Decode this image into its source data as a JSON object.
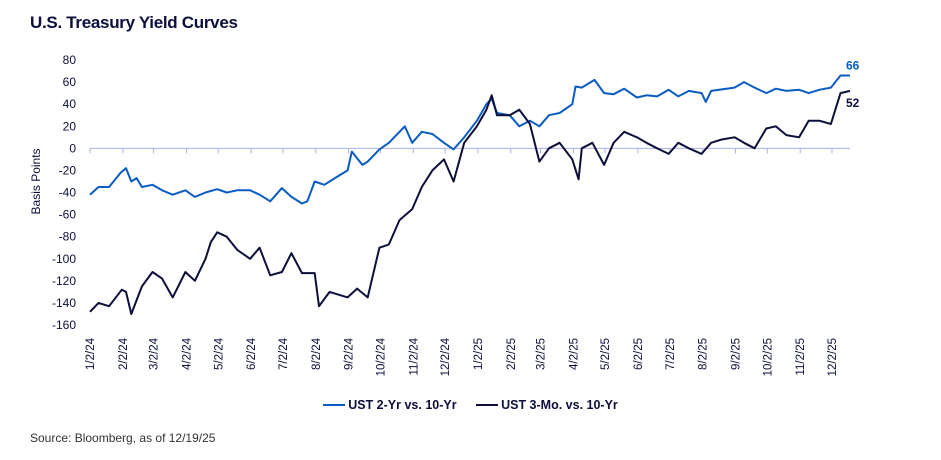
{
  "title": "U.S. Treasury Yield Curves",
  "source": "Source: Bloomberg, as of 12/19/25",
  "chart_data": {
    "type": "line",
    "title": "U.S. Treasury Yield Curves",
    "ylabel": "Basis Points",
    "xlabel": "",
    "ylim": [
      -160,
      80
    ],
    "yticks": [
      80,
      60,
      40,
      20,
      0,
      -20,
      -40,
      -60,
      -80,
      -100,
      -120,
      -140,
      -160
    ],
    "xlim": [
      "2024-01-02",
      "2025-12-19"
    ],
    "xtick_labels": [
      "1/2/24",
      "2/2/24",
      "3/2/24",
      "4/2/24",
      "5/2/24",
      "6/2/24",
      "7/2/24",
      "8/2/24",
      "9/2/24",
      "10/2/24",
      "11/2/24",
      "12/2/24",
      "1/2/25",
      "2/2/25",
      "3/2/25",
      "4/2/25",
      "5/2/25",
      "6/2/25",
      "7/2/25",
      "8/2/25",
      "9/2/25",
      "10/2/25",
      "11/2/25",
      "12/2/25"
    ],
    "xtick_dates": [
      "2024-01-02",
      "2024-02-02",
      "2024-03-02",
      "2024-04-02",
      "2024-05-02",
      "2024-06-02",
      "2024-07-02",
      "2024-08-02",
      "2024-09-02",
      "2024-10-02",
      "2024-11-02",
      "2024-12-02",
      "2025-01-02",
      "2025-02-02",
      "2025-03-02",
      "2025-04-02",
      "2025-05-02",
      "2025-06-02",
      "2025-07-02",
      "2025-08-02",
      "2025-09-02",
      "2025-10-02",
      "2025-11-02",
      "2025-12-02"
    ],
    "legend_position": "bottom",
    "grid": false,
    "series": [
      {
        "name": "UST 2-Yr vs. 10-Yr",
        "color": "#0a5cc2",
        "end_label": "66",
        "x": [
          "2024-01-02",
          "2024-01-10",
          "2024-01-20",
          "2024-01-31",
          "2024-02-05",
          "2024-02-10",
          "2024-02-15",
          "2024-02-20",
          "2024-03-01",
          "2024-03-10",
          "2024-03-20",
          "2024-04-01",
          "2024-04-10",
          "2024-04-20",
          "2024-05-01",
          "2024-05-10",
          "2024-05-20",
          "2024-06-01",
          "2024-06-10",
          "2024-06-20",
          "2024-07-01",
          "2024-07-10",
          "2024-07-20",
          "2024-07-25",
          "2024-08-01",
          "2024-08-10",
          "2024-08-20",
          "2024-09-01",
          "2024-09-05",
          "2024-09-15",
          "2024-09-20",
          "2024-10-01",
          "2024-10-10",
          "2024-10-20",
          "2024-10-25",
          "2024-11-01",
          "2024-11-10",
          "2024-11-20",
          "2024-12-01",
          "2024-12-10",
          "2024-12-20",
          "2025-01-01",
          "2025-01-10",
          "2025-01-15",
          "2025-01-20",
          "2025-02-01",
          "2025-02-10",
          "2025-02-20",
          "2025-03-01",
          "2025-03-10",
          "2025-03-20",
          "2025-04-01",
          "2025-04-04",
          "2025-04-10",
          "2025-04-22",
          "2025-05-01",
          "2025-05-10",
          "2025-05-20",
          "2025-06-01",
          "2025-06-10",
          "2025-06-20",
          "2025-07-01",
          "2025-07-10",
          "2025-07-20",
          "2025-08-01",
          "2025-08-05",
          "2025-08-10",
          "2025-09-01",
          "2025-09-10",
          "2025-09-20",
          "2025-10-01",
          "2025-10-10",
          "2025-10-20",
          "2025-11-01",
          "2025-11-10",
          "2025-11-20",
          "2025-12-01",
          "2025-12-10",
          "2025-12-19"
        ],
        "values": [
          -42,
          -35,
          -35,
          -22,
          -18,
          -30,
          -27,
          -35,
          -33,
          -38,
          -42,
          -38,
          -44,
          -40,
          -37,
          -40,
          -38,
          -38,
          -42,
          -48,
          -36,
          -44,
          -50,
          -48,
          -30,
          -33,
          -27,
          -20,
          -3,
          -15,
          -12,
          -1,
          5,
          15,
          20,
          5,
          15,
          13,
          5,
          -1,
          10,
          25,
          40,
          45,
          32,
          30,
          20,
          25,
          20,
          30,
          32,
          40,
          56,
          55,
          62,
          50,
          49,
          54,
          46,
          48,
          47,
          53,
          47,
          52,
          50,
          42,
          52,
          55,
          60,
          55,
          50,
          54,
          52,
          53,
          50,
          53,
          55,
          66,
          66
        ]
      },
      {
        "name": "UST 3-Mo. vs. 10-Yr",
        "color": "#0b0f3a",
        "end_label": "52",
        "x": [
          "2024-01-02",
          "2024-01-10",
          "2024-01-20",
          "2024-02-01",
          "2024-02-05",
          "2024-02-10",
          "2024-02-20",
          "2024-03-01",
          "2024-03-10",
          "2024-03-20",
          "2024-04-01",
          "2024-04-10",
          "2024-04-20",
          "2024-04-25",
          "2024-05-01",
          "2024-05-10",
          "2024-05-20",
          "2024-06-01",
          "2024-06-10",
          "2024-06-20",
          "2024-07-01",
          "2024-07-10",
          "2024-07-20",
          "2024-08-01",
          "2024-08-05",
          "2024-08-15",
          "2024-09-01",
          "2024-09-10",
          "2024-09-20",
          "2024-10-01",
          "2024-10-10",
          "2024-10-20",
          "2024-11-01",
          "2024-11-10",
          "2024-11-20",
          "2024-12-01",
          "2024-12-10",
          "2024-12-20",
          "2025-01-01",
          "2025-01-10",
          "2025-01-15",
          "2025-01-20",
          "2025-02-01",
          "2025-02-10",
          "2025-02-20",
          "2025-03-01",
          "2025-03-10",
          "2025-03-20",
          "2025-04-01",
          "2025-04-07",
          "2025-04-10",
          "2025-04-20",
          "2025-05-01",
          "2025-05-10",
          "2025-05-20",
          "2025-06-01",
          "2025-06-10",
          "2025-06-20",
          "2025-07-01",
          "2025-07-10",
          "2025-07-20",
          "2025-08-01",
          "2025-08-10",
          "2025-08-20",
          "2025-09-01",
          "2025-09-10",
          "2025-09-20",
          "2025-10-01",
          "2025-10-10",
          "2025-10-20",
          "2025-11-01",
          "2025-11-10",
          "2025-11-20",
          "2025-12-01",
          "2025-12-10",
          "2025-12-19"
        ],
        "values": [
          -148,
          -140,
          -143,
          -128,
          -130,
          -150,
          -125,
          -112,
          -118,
          -135,
          -112,
          -120,
          -100,
          -85,
          -76,
          -80,
          -92,
          -100,
          -90,
          -115,
          -112,
          -95,
          -113,
          -113,
          -143,
          -130,
          -135,
          -127,
          -135,
          -90,
          -87,
          -65,
          -55,
          -35,
          -20,
          -10,
          -30,
          5,
          20,
          35,
          48,
          30,
          30,
          35,
          22,
          -12,
          0,
          5,
          -10,
          -28,
          0,
          5,
          -15,
          5,
          15,
          10,
          5,
          0,
          -5,
          5,
          0,
          -5,
          5,
          8,
          10,
          5,
          0,
          18,
          20,
          12,
          10,
          25,
          25,
          22,
          50,
          52
        ]
      }
    ]
  }
}
